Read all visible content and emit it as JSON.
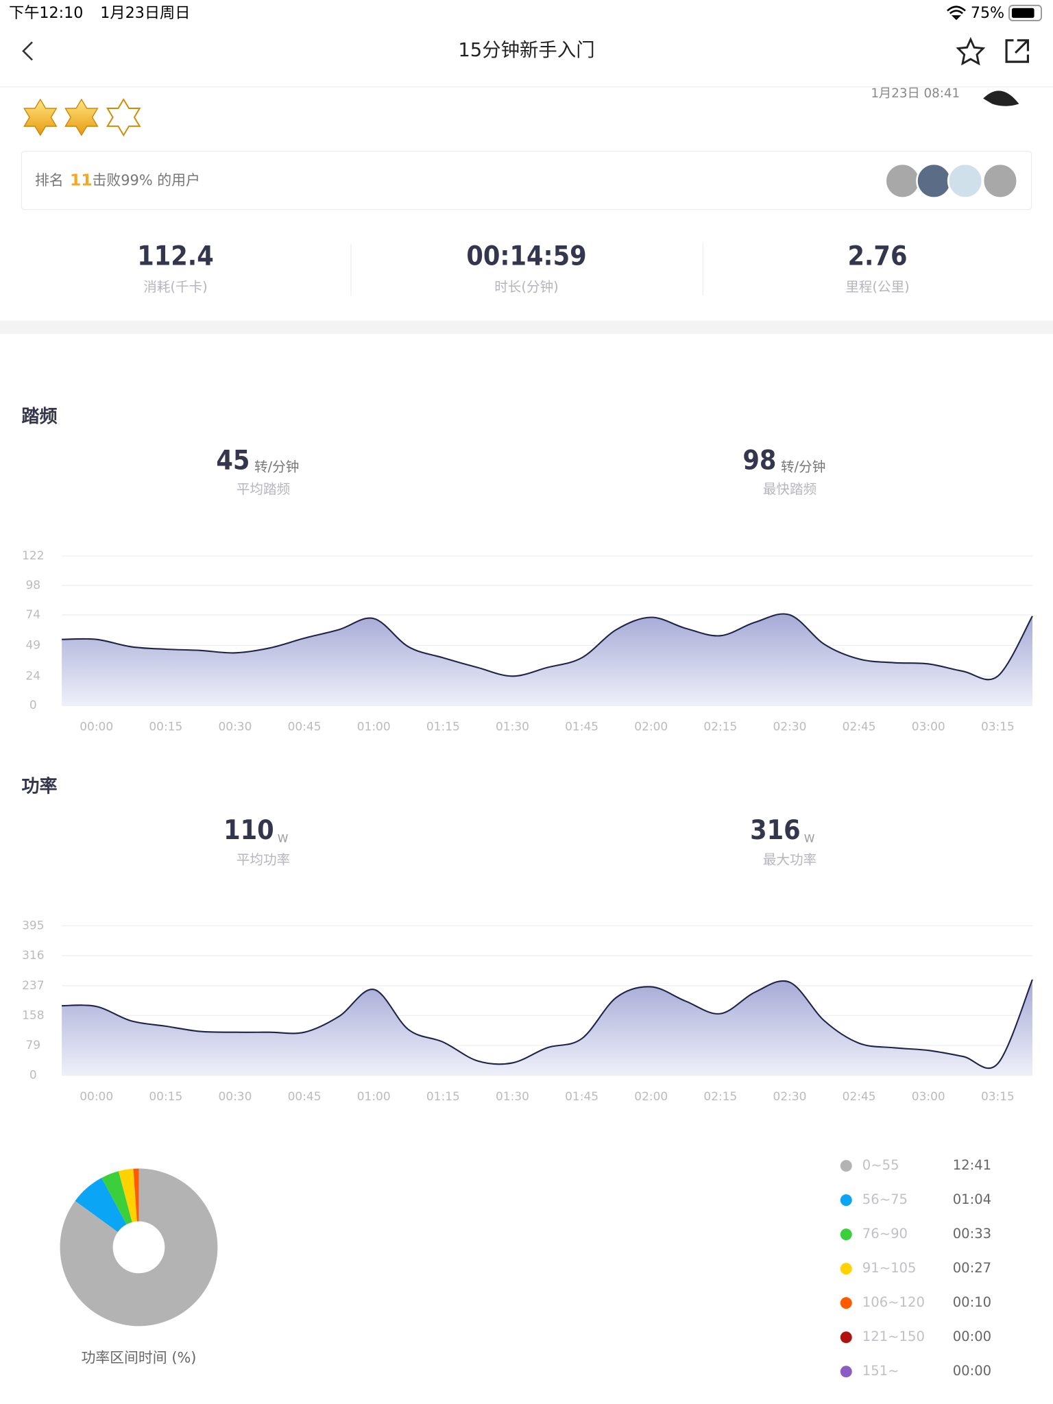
{
  "status_bar": {
    "time": "下午12:10",
    "date": "1月23日周日",
    "battery": "75%"
  },
  "nav": {
    "title": "15分钟新手入门"
  },
  "header": {
    "datetime": "1月23日 08:41"
  },
  "rank": {
    "label": "排名",
    "value": "11",
    "suffix": "击败99% 的用户"
  },
  "stats": [
    {
      "value": "112.4",
      "label": "消耗(千卡)"
    },
    {
      "value": "00:14:59",
      "label": "时长(分钟)"
    },
    {
      "value": "2.76",
      "label": "里程(公里)"
    }
  ],
  "summaries": [
    [
      {
        "value": "45",
        "unit": "转/分钟",
        "label": "平均踏频"
      },
      {
        "value": "98",
        "unit": "转/分钟",
        "label": "最快踏频"
      }
    ],
    [
      {
        "value": "110",
        "unit": "W",
        "label": "平均功率"
      },
      {
        "value": "316",
        "unit": "W",
        "label": "最大功率"
      }
    ]
  ],
  "chart_data": [
    {
      "type": "area",
      "title": "踏频",
      "color": "#1f2347",
      "categories": [
        null,
        "00:00",
        null,
        "00:15",
        null,
        "00:30",
        null,
        "00:45",
        null,
        "01:00",
        null,
        "01:15",
        null,
        "01:30",
        null,
        "01:45",
        null,
        "02:00",
        null,
        "02:15",
        null,
        "02:30",
        null,
        "02:45",
        null,
        "03:00",
        null,
        "03:15",
        null
      ],
      "values": [
        54,
        54,
        48,
        46,
        45,
        43,
        47,
        55,
        62,
        71,
        48,
        39,
        31,
        24,
        31,
        39,
        62,
        72,
        63,
        57,
        68,
        74,
        50,
        38,
        35,
        34,
        28,
        24,
        73
      ],
      "ylim": [
        0,
        122
      ],
      "yticks": [
        0,
        24,
        49,
        74,
        98,
        122
      ],
      "grid": true
    },
    {
      "type": "area",
      "title": "功率",
      "color": "#1f2347",
      "categories": [
        null,
        "00:00",
        null,
        "00:15",
        null,
        "00:30",
        null,
        "00:45",
        null,
        "01:00",
        null,
        "01:15",
        null,
        "01:30",
        null,
        "01:45",
        null,
        "02:00",
        null,
        "02:15",
        null,
        "02:30",
        null,
        "02:45",
        null,
        "03:00",
        null,
        "03:15",
        null
      ],
      "values": [
        184,
        182,
        144,
        130,
        116,
        114,
        114,
        114,
        156,
        227,
        121,
        88,
        38,
        33,
        73,
        97,
        206,
        234,
        196,
        163,
        220,
        246,
        144,
        85,
        73,
        66,
        50,
        31,
        253
      ],
      "ylim": [
        0,
        395
      ],
      "yticks": [
        0,
        79,
        158,
        237,
        316,
        395
      ],
      "grid": true
    },
    {
      "type": "pie",
      "title": "功率区间时间 (%)",
      "categories": [
        "0~55",
        "56~75",
        "76~90",
        "91~105",
        "106~120",
        "121~150",
        "151~"
      ],
      "values": [
        761,
        64,
        33,
        27,
        10,
        0,
        0
      ],
      "value_labels": [
        "12:41",
        "01:04",
        "00:33",
        "00:27",
        "00:10",
        "00:00",
        "00:00"
      ],
      "colors": [
        "#b3b3b3",
        "#0aa5f5",
        "#3ccf3c",
        "#ffd200",
        "#ff5a00",
        "#b0130f",
        "#8a5cc4"
      ]
    }
  ]
}
